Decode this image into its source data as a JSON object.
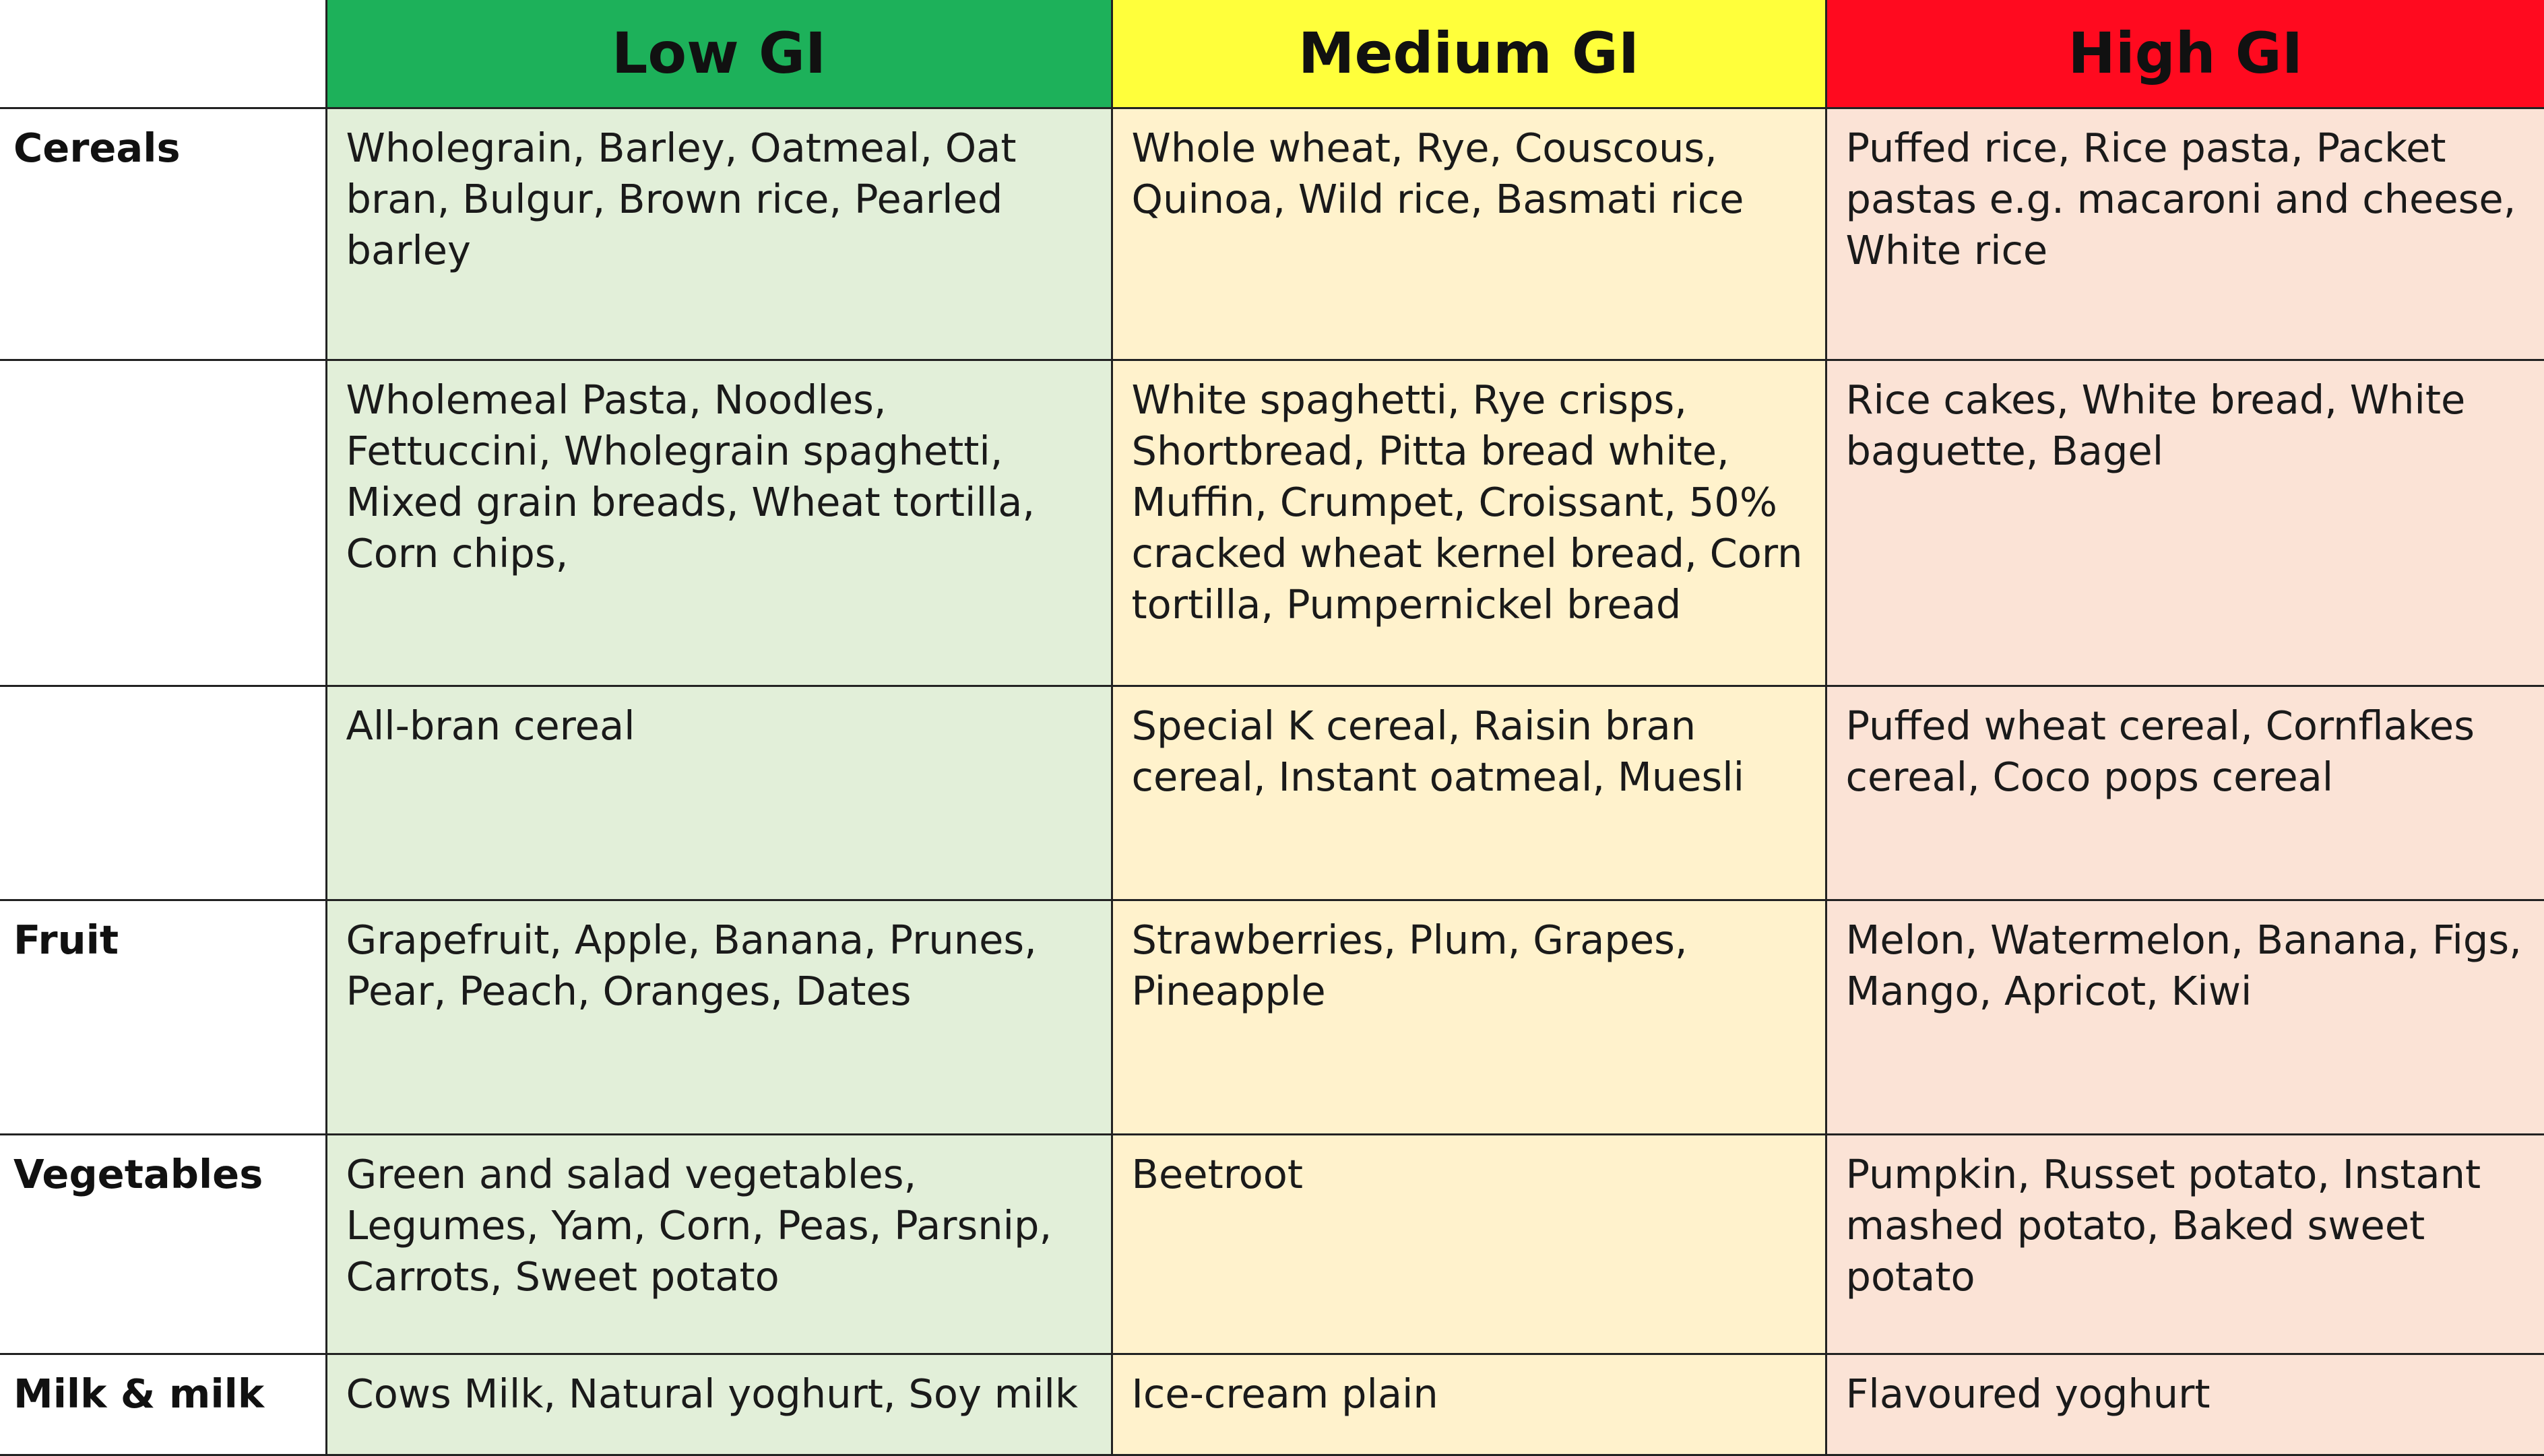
{
  "header": {
    "low": "Low GI",
    "medium": "Medium GI",
    "high": "High GI"
  },
  "colors": {
    "low_header": "#1db15a",
    "medium_header": "#ffff3b",
    "high_header": "#ff0a1f",
    "low_cell": "#e2efd9",
    "medium_cell": "#fff2cc",
    "high_cell": "#fbe3d6"
  },
  "rows": [
    {
      "category": "Cereals",
      "low": "Wholegrain, Barley, Oatmeal, Oat bran, Bulgur, Brown rice, Pearled barley",
      "medium": "Whole wheat, Rye, Couscous, Quinoa, Wild rice, Basmati rice",
      "high": "Puffed rice, Rice pasta, Packet pastas e.g. macaroni and cheese, White rice"
    },
    {
      "category": "",
      "low": "Wholemeal Pasta, Noodles, Fettuccini, Wholegrain spaghetti, Mixed grain breads, Wheat tortilla, Corn chips,",
      "medium": "White spaghetti, Rye crisps, Shortbread, Pitta bread white, Muffin, Crumpet, Croissant, 50% cracked wheat kernel bread, Corn tortilla, Pumpernickel bread",
      "high": "Rice cakes, White bread, White baguette, Bagel"
    },
    {
      "category": "",
      "low": "All-bran cereal",
      "medium": "Special K cereal, Raisin bran cereal, Instant oatmeal, Muesli",
      "high": "Puffed wheat cereal, Cornflakes cereal, Coco pops cereal"
    },
    {
      "category": "Fruit",
      "low": "Grapefruit, Apple, Banana, Prunes, Pear, Peach, Oranges, Dates",
      "medium": "Strawberries, Plum, Grapes, Pineapple",
      "high": "Melon, Watermelon,  Banana, Figs, Mango, Apricot, Kiwi"
    },
    {
      "category": "Vegetables",
      "low": "Green and salad vegetables, Legumes, Yam, Corn, Peas, Parsnip, Carrots, Sweet potato",
      "medium": "Beetroot",
      "high": "Pumpkin, Russet potato, Instant mashed potato, Baked sweet potato"
    },
    {
      "category": "Milk & milk",
      "low": "Cows Milk, Natural yoghurt, Soy milk",
      "medium": "Ice-cream plain",
      "high": "Flavoured yoghurt"
    }
  ]
}
